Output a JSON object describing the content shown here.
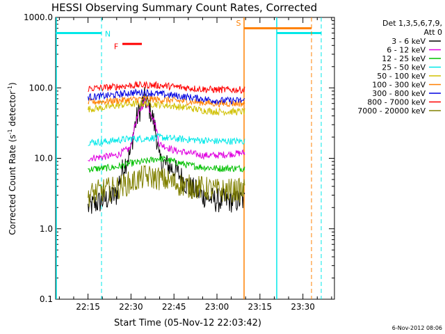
{
  "chart_data": {
    "type": "line",
    "title": "HESSI Observing Summary Count Rates, Corrected",
    "xlabel": "Start Time (05-Nov-12 22:03:42)",
    "ylabel_main": "Corrected Count Rate (s",
    "ylabel_sup1": "-1",
    "ylabel_mid": " detector",
    "ylabel_sup2": "-1",
    "ylabel_end": ")",
    "y_scale": "log",
    "ylim": [
      0.1,
      1000.0
    ],
    "xlim": [
      "22:03:42",
      "23:41:00"
    ],
    "y_ticks": [
      {
        "value": 0.1,
        "label": "0.1"
      },
      {
        "value": 1.0,
        "label": "1.0"
      },
      {
        "value": 10.0,
        "label": "10.0"
      },
      {
        "value": 100.0,
        "label": "100.0"
      },
      {
        "value": 1000.0,
        "label": "1000.0"
      }
    ],
    "x_ticks": [
      {
        "value": "22:15",
        "label": "22:15"
      },
      {
        "value": "22:30",
        "label": "22:30"
      },
      {
        "value": "22:45",
        "label": "22:45"
      },
      {
        "value": "23:00",
        "label": "23:00"
      },
      {
        "value": "23:15",
        "label": "23:15"
      },
      {
        "value": "23:30",
        "label": "23:30"
      }
    ],
    "legend_header": [
      "Det 1,3,5,6,7,9,",
      "Att 0"
    ],
    "legend_placement": "right",
    "timestamp": "6-Nov-2012 08:06",
    "data_start": "22:15:00",
    "data_end": "23:09:40",
    "series": [
      {
        "name": "3 - 6 keV",
        "color": "#000000",
        "values": [
          2.0,
          2.5,
          3.0,
          12,
          70,
          9,
          7,
          4,
          3,
          2.5,
          2.5,
          2.5
        ]
      },
      {
        "name": "6 - 12 keV",
        "color": "#e000e0",
        "values": [
          10,
          10.5,
          11,
          14,
          65,
          16,
          13,
          12,
          11,
          11,
          11.5,
          12
        ]
      },
      {
        "name": "12 - 25 keV",
        "color": "#00c000",
        "values": [
          7,
          7.2,
          7.5,
          8.5,
          9,
          10,
          9,
          8,
          7.5,
          7.2,
          7.2,
          7.2
        ]
      },
      {
        "name": "25 - 50 keV",
        "color": "#00e8e8",
        "values": [
          17,
          17,
          18,
          19,
          19,
          20,
          19,
          18.5,
          18,
          17.5,
          17.5,
          17.5
        ]
      },
      {
        "name": "50 - 100 keV",
        "color": "#d0c000",
        "values": [
          50,
          52,
          56,
          59,
          60,
          58,
          55,
          52,
          48,
          46,
          46,
          46
        ]
      },
      {
        "name": "100 - 300 keV",
        "color": "#ff8000",
        "values": [
          63,
          64,
          66,
          68,
          70,
          68,
          66,
          64,
          62,
          60,
          60,
          60
        ]
      },
      {
        "name": "300 - 800 keV",
        "color": "#0000e0",
        "values": [
          74,
          76,
          80,
          85,
          86,
          82,
          78,
          74,
          70,
          66,
          66,
          66
        ]
      },
      {
        "name": "800 - 7000 keV",
        "color": "#ff0000",
        "values": [
          98,
          100,
          104,
          108,
          110,
          108,
          104,
          100,
          96,
          94,
          94,
          94
        ]
      },
      {
        "name": "7000 - 20000 keV",
        "color": "#808000",
        "values": [
          3.0,
          3.5,
          3.8,
          4.5,
          5.5,
          5.2,
          4.5,
          4.0,
          3.8,
          3.5,
          3.5,
          3.5
        ]
      }
    ],
    "flags": [
      {
        "label": "N",
        "color": "#00e8e8"
      },
      {
        "label": "F",
        "color": "#ff0000"
      },
      {
        "label": "S",
        "color": "#ff8000"
      }
    ]
  }
}
